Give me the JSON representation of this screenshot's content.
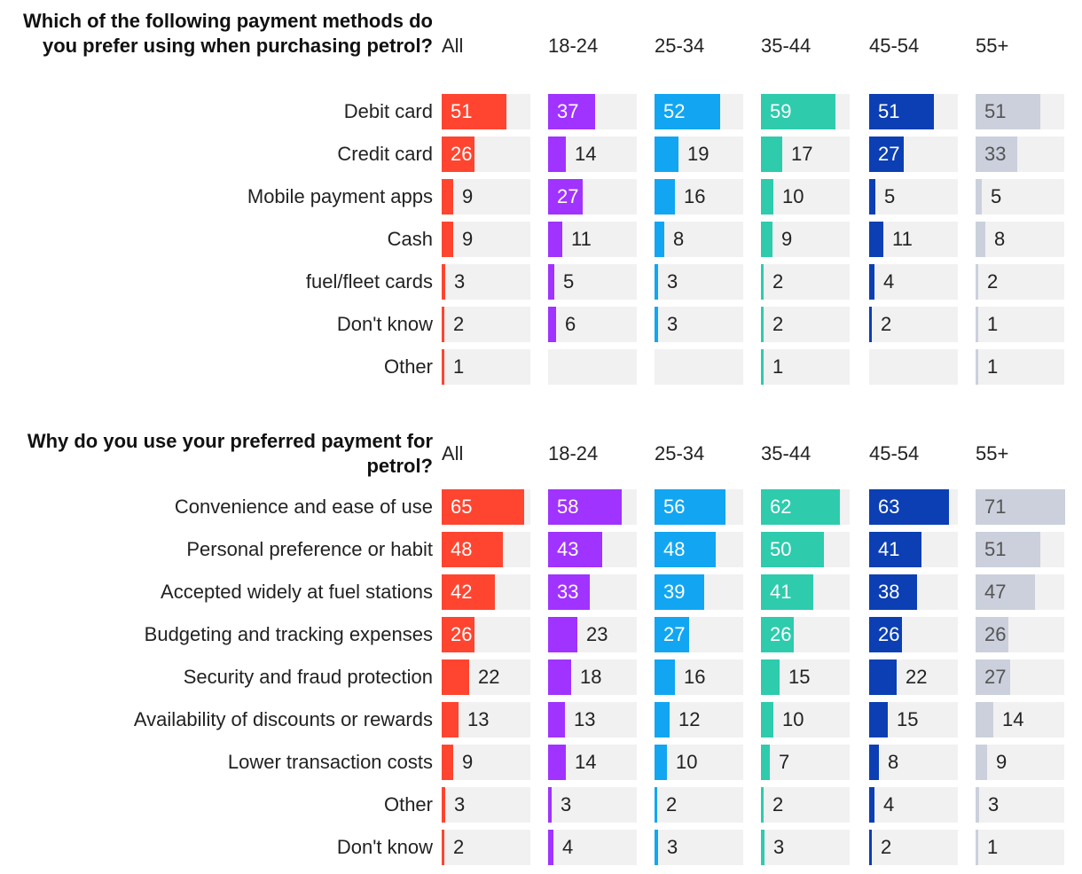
{
  "chart_data": [
    {
      "type": "bar",
      "title": "Which of the following payment methods do you prefer using when purchasing petrol?",
      "groups": [
        "All",
        "18-24",
        "25-34",
        "35-44",
        "45-54",
        "55+"
      ],
      "categories": [
        "Debit card",
        "Credit card",
        "Mobile payment apps",
        "Cash",
        "fuel/fleet cards",
        "Don't know",
        "Other"
      ],
      "series": [
        {
          "name": "All",
          "color": "#ff4530",
          "values": [
            51,
            26,
            9,
            9,
            3,
            2,
            1
          ]
        },
        {
          "name": "18-24",
          "color": "#a033ff",
          "values": [
            37,
            14,
            27,
            11,
            5,
            6,
            null
          ]
        },
        {
          "name": "25-34",
          "color": "#12a6f2",
          "values": [
            52,
            19,
            16,
            8,
            3,
            3,
            null
          ]
        },
        {
          "name": "35-44",
          "color": "#2ecbad",
          "values": [
            59,
            17,
            10,
            9,
            2,
            2,
            1
          ]
        },
        {
          "name": "45-54",
          "color": "#0b3fb3",
          "values": [
            51,
            27,
            5,
            11,
            4,
            2,
            null
          ]
        },
        {
          "name": "55+",
          "color": "#cbd0dc",
          "values": [
            51,
            33,
            5,
            8,
            2,
            1,
            1
          ]
        }
      ],
      "ylim": [
        0,
        70
      ]
    },
    {
      "type": "bar",
      "title": "Why do you use your preferred payment for petrol?",
      "groups": [
        "All",
        "18-24",
        "25-34",
        "35-44",
        "45-54",
        "55+"
      ],
      "categories": [
        "Convenience and ease of use",
        "Personal preference or habit",
        "Accepted widely at fuel stations",
        "Budgeting and tracking expenses",
        "Security and fraud protection",
        "Availability of discounts or rewards",
        "Lower transaction costs",
        "Other",
        "Don't know"
      ],
      "series": [
        {
          "name": "All",
          "color": "#ff4530",
          "values": [
            65,
            48,
            42,
            26,
            22,
            13,
            9,
            3,
            2
          ]
        },
        {
          "name": "18-24",
          "color": "#a033ff",
          "values": [
            58,
            43,
            33,
            23,
            18,
            13,
            14,
            3,
            4
          ]
        },
        {
          "name": "25-34",
          "color": "#12a6f2",
          "values": [
            56,
            48,
            39,
            27,
            16,
            12,
            10,
            2,
            3
          ]
        },
        {
          "name": "35-44",
          "color": "#2ecbad",
          "values": [
            62,
            50,
            41,
            26,
            15,
            10,
            7,
            2,
            3
          ]
        },
        {
          "name": "45-54",
          "color": "#0b3fb3",
          "values": [
            63,
            41,
            38,
            26,
            22,
            15,
            8,
            4,
            2
          ]
        },
        {
          "name": "55+",
          "color": "#cbd0dc",
          "values": [
            71,
            51,
            47,
            26,
            27,
            14,
            9,
            3,
            1
          ]
        }
      ],
      "ylim": [
        0,
        70
      ]
    }
  ]
}
